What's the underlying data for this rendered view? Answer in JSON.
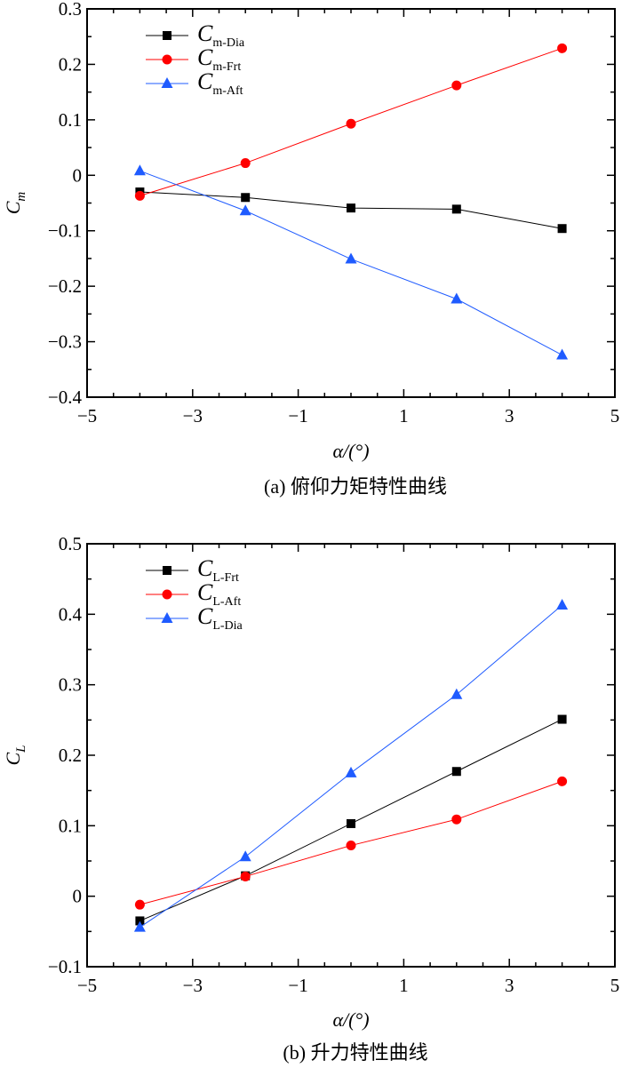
{
  "chart_data": [
    {
      "type": "line",
      "caption": "(a) 俯仰力矩特性曲线",
      "xlabel": "α/(°)",
      "ylabel": "C",
      "ylabel_sub": "m",
      "xlim": [
        -5,
        5
      ],
      "ylim": [
        -0.4,
        0.3
      ],
      "xticks": [
        "−5",
        "−3",
        "−1",
        "1",
        "3",
        "5"
      ],
      "yticks": [
        "−0.4",
        "−0.3",
        "−0.2",
        "−0.1",
        "0",
        "0.1",
        "0.2",
        "0.3"
      ],
      "legend_position": "top-left",
      "x": [
        -4,
        -2,
        0,
        2,
        4
      ],
      "series": [
        {
          "name": "C",
          "sub": "m-Dia",
          "marker": "square",
          "color": "#000000",
          "values": [
            -0.03,
            -0.04,
            -0.059,
            -0.061,
            -0.096
          ]
        },
        {
          "name": "C",
          "sub": "m-Frt",
          "marker": "circle",
          "color": "#ff0000",
          "values": [
            -0.037,
            0.022,
            0.093,
            0.162,
            0.229
          ]
        },
        {
          "name": "C",
          "sub": "m-Aft",
          "marker": "triangle",
          "color": "#1f5bff",
          "values": [
            0.008,
            -0.064,
            -0.151,
            -0.223,
            -0.324
          ]
        }
      ]
    },
    {
      "type": "line",
      "caption": "(b) 升力特性曲线",
      "xlabel": "α/(°)",
      "ylabel": "C",
      "ylabel_sub": "L",
      "xlim": [
        -5,
        5
      ],
      "ylim": [
        -0.1,
        0.5
      ],
      "xticks": [
        "−5",
        "−3",
        "−1",
        "1",
        "3",
        "5"
      ],
      "yticks": [
        "−0.1",
        "0",
        "0.1",
        "0.2",
        "0.3",
        "0.4",
        "0.5"
      ],
      "legend_position": "top-left",
      "x": [
        -4,
        -2,
        0,
        2,
        4
      ],
      "series": [
        {
          "name": "C",
          "sub": "L-Frt",
          "marker": "square",
          "color": "#000000",
          "values": [
            -0.035,
            0.029,
            0.103,
            0.177,
            0.251
          ]
        },
        {
          "name": "C",
          "sub": "L-Aft",
          "marker": "circle",
          "color": "#ff0000",
          "values": [
            -0.012,
            0.028,
            0.072,
            0.109,
            0.163
          ]
        },
        {
          "name": "C",
          "sub": "L-Dia",
          "marker": "triangle",
          "color": "#1f5bff",
          "values": [
            -0.044,
            0.056,
            0.175,
            0.286,
            0.413
          ]
        }
      ]
    }
  ]
}
